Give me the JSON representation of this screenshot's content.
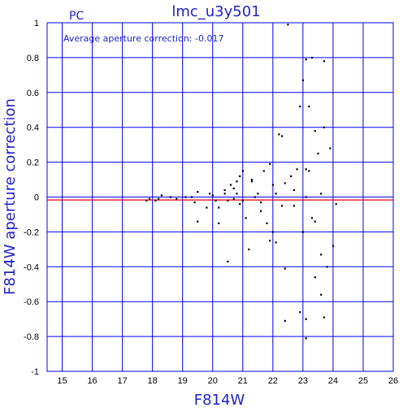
{
  "chart_data": {
    "type": "scatter",
    "title": "lmc_u3y501",
    "subtitle": "PC",
    "xlabel": "F814W",
    "ylabel": "F814W aperture correction",
    "annotation": "Average aperture correction: -0.017",
    "xlim": [
      14.5,
      26
    ],
    "ylim": [
      -1,
      1
    ],
    "xticks": [
      "15",
      "16",
      "17",
      "18",
      "19",
      "20",
      "21",
      "22",
      "23",
      "24",
      "25",
      "26"
    ],
    "yticks": [
      "1",
      "0.8",
      "0.6",
      "0.4",
      "0.2",
      "0",
      "-0.2",
      "-0.4",
      "-0.6",
      "-0.8",
      "-1"
    ],
    "grid": true,
    "reference_line": {
      "y": -0.017,
      "color": "#dd0000"
    },
    "colors": {
      "frame": "#0000ff",
      "text": "#2222cc",
      "points": "#000000"
    },
    "points": [
      [
        17.8,
        -0.02
      ],
      [
        17.9,
        -0.01
      ],
      [
        18.1,
        -0.02
      ],
      [
        18.2,
        -0.01
      ],
      [
        18.3,
        0.01
      ],
      [
        18.6,
        0.0
      ],
      [
        18.8,
        -0.01
      ],
      [
        19.1,
        0.0
      ],
      [
        19.3,
        0.0
      ],
      [
        19.4,
        -0.03
      ],
      [
        19.5,
        0.03
      ],
      [
        19.5,
        -0.14
      ],
      [
        19.8,
        -0.06
      ],
      [
        19.9,
        0.02
      ],
      [
        20.0,
        0.01
      ],
      [
        20.1,
        -0.02
      ],
      [
        20.2,
        -0.06
      ],
      [
        20.2,
        -0.15
      ],
      [
        20.4,
        0.04
      ],
      [
        20.4,
        0.02
      ],
      [
        20.5,
        -0.02
      ],
      [
        20.5,
        -0.37
      ],
      [
        20.6,
        0.07
      ],
      [
        20.7,
        0.05
      ],
      [
        20.7,
        -0.01
      ],
      [
        20.8,
        0.02
      ],
      [
        20.8,
        0.09
      ],
      [
        20.9,
        0.12
      ],
      [
        20.9,
        -0.04
      ],
      [
        21.0,
        0.15
      ],
      [
        21.0,
        -0.02
      ],
      [
        21.1,
        -0.12
      ],
      [
        21.2,
        -0.3
      ],
      [
        21.3,
        0.09
      ],
      [
        21.3,
        0.1
      ],
      [
        21.4,
        0.0
      ],
      [
        21.5,
        0.02
      ],
      [
        21.6,
        -0.03
      ],
      [
        21.6,
        -0.08
      ],
      [
        21.7,
        0.15
      ],
      [
        21.8,
        -0.15
      ],
      [
        21.9,
        -0.25
      ],
      [
        21.9,
        0.19
      ],
      [
        22.0,
        -0.2
      ],
      [
        22.0,
        0.07
      ],
      [
        22.1,
        0.02
      ],
      [
        22.1,
        -0.26
      ],
      [
        22.2,
        0.36
      ],
      [
        22.3,
        -0.05
      ],
      [
        22.3,
        0.35
      ],
      [
        22.4,
        0.08
      ],
      [
        22.4,
        -0.41
      ],
      [
        22.4,
        -0.71
      ],
      [
        22.5,
        0.99
      ],
      [
        22.6,
        0.12
      ],
      [
        22.7,
        -0.05
      ],
      [
        22.7,
        0.04
      ],
      [
        22.8,
        0.16
      ],
      [
        22.9,
        -0.66
      ],
      [
        22.9,
        0.52
      ],
      [
        23.0,
        0.67
      ],
      [
        23.0,
        -0.2
      ],
      [
        23.1,
        0.79
      ],
      [
        23.1,
        0.16
      ],
      [
        23.1,
        -0.7
      ],
      [
        23.1,
        -0.81
      ],
      [
        23.1,
        0.0
      ],
      [
        23.2,
        0.52
      ],
      [
        23.2,
        0.15
      ],
      [
        23.3,
        0.8
      ],
      [
        23.3,
        -0.12
      ],
      [
        23.4,
        0.38
      ],
      [
        23.4,
        -0.46
      ],
      [
        23.4,
        -0.14
      ],
      [
        23.5,
        0.25
      ],
      [
        23.6,
        0.02
      ],
      [
        23.6,
        -0.33
      ],
      [
        23.6,
        -0.56
      ],
      [
        23.7,
        0.4
      ],
      [
        23.7,
        0.78
      ],
      [
        23.7,
        -0.69
      ],
      [
        23.8,
        -0.4
      ],
      [
        23.9,
        0.28
      ],
      [
        24.0,
        -0.28
      ],
      [
        24.1,
        -0.04
      ]
    ]
  }
}
